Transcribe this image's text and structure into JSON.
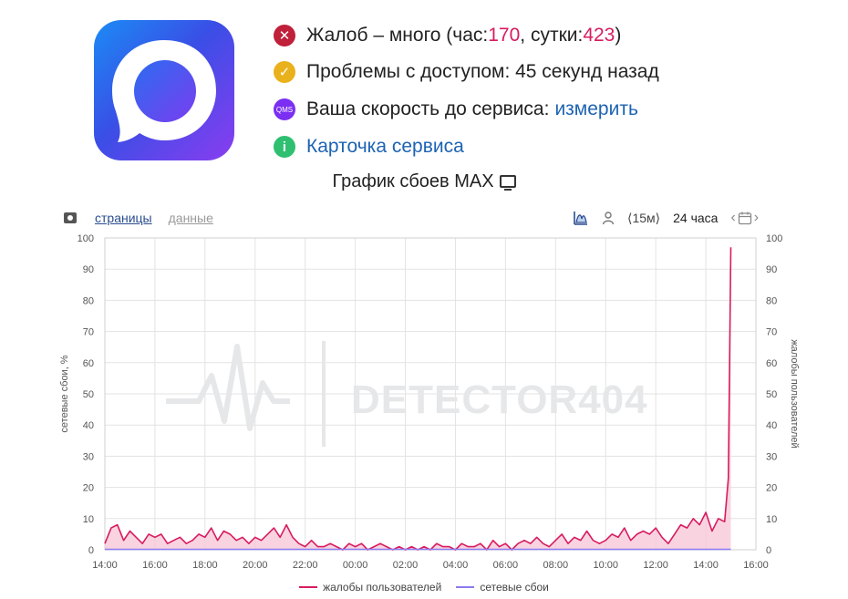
{
  "status": {
    "complaints": {
      "prefix": "Жалоб – много (час: ",
      "hour_value": "170",
      "mid": ", сутки: ",
      "day_value": "423",
      "suffix": ")"
    },
    "access": {
      "text": "Проблемы с доступом: 45 секунд назад"
    },
    "speed": {
      "icon_text": "QMS",
      "label": "Ваша скорость до сервиса: ",
      "link": "измерить"
    },
    "card": {
      "icon_text": "i",
      "link": "Карточка сервиса"
    }
  },
  "graph_title": "График сбоев MAX",
  "toolbar": {
    "tab_pages": "страницы",
    "tab_data": "данные",
    "interval": "⟨15м⟩",
    "period": "24 часа"
  },
  "watermark": "DETECTOR404",
  "colors": {
    "complaints": "#d81b60",
    "complaints_fill": "#f7c6d6",
    "network": "#8a7cf0",
    "grid": "#e3e3e3",
    "error": "#c0203a",
    "warning": "#e9b21c",
    "qms": "#7b2ff2",
    "info": "#2fbf71",
    "link": "#1d63b3"
  },
  "icons": {
    "error": "close-circle-icon",
    "warning": "check-circle-icon",
    "qms": "qms-badge-icon",
    "info": "info-circle-icon",
    "screenshot": "camera-icon",
    "chart_type": "area-chart-icon",
    "user": "user-icon",
    "calendar": "calendar-icon",
    "display": "monitor-icon"
  },
  "chart_data": {
    "type": "area",
    "title": "График сбоев MAX",
    "ylabel_left": "сетевые сбои, %",
    "ylabel_right": "жалобы пользователей",
    "ylim": [
      0,
      100
    ],
    "y_ticks": [
      0,
      10,
      20,
      30,
      40,
      50,
      60,
      70,
      80,
      90,
      100
    ],
    "x_ticks": [
      "14:00",
      "16:00",
      "18:00",
      "20:00",
      "22:00",
      "00:00",
      "02:00",
      "04:00",
      "06:00",
      "08:00",
      "10:00",
      "12:00",
      "14:00",
      "16:00"
    ],
    "grid": true,
    "legend_position": "bottom",
    "x_range_hours": [
      0,
      26
    ],
    "series": [
      {
        "name": "жалобы пользователей",
        "x_hours": [
          0,
          0.25,
          0.5,
          0.75,
          1,
          1.25,
          1.5,
          1.75,
          2,
          2.25,
          2.5,
          2.75,
          3,
          3.25,
          3.5,
          3.75,
          4,
          4.25,
          4.5,
          4.75,
          5,
          5.25,
          5.5,
          5.75,
          6,
          6.25,
          6.5,
          6.75,
          7,
          7.25,
          7.5,
          7.75,
          8,
          8.25,
          8.5,
          8.75,
          9,
          9.25,
          9.5,
          9.75,
          10,
          10.25,
          10.5,
          10.75,
          11,
          11.25,
          11.5,
          11.75,
          12,
          12.25,
          12.5,
          12.75,
          13,
          13.25,
          13.5,
          13.75,
          14,
          14.25,
          14.5,
          14.75,
          15,
          15.25,
          15.5,
          15.75,
          16,
          16.25,
          16.5,
          16.75,
          17,
          17.25,
          17.5,
          17.75,
          18,
          18.25,
          18.5,
          18.75,
          19,
          19.25,
          19.5,
          19.75,
          20,
          20.25,
          20.5,
          20.75,
          21,
          21.25,
          21.5,
          21.75,
          22,
          22.25,
          22.5,
          22.75,
          23,
          23.25,
          23.5,
          23.75,
          24,
          24.25,
          24.5,
          24.75,
          24.9,
          25.0
        ],
        "values": [
          2,
          7,
          8,
          3,
          6,
          4,
          2,
          5,
          4,
          5,
          2,
          3,
          4,
          2,
          3,
          5,
          4,
          7,
          3,
          6,
          5,
          3,
          4,
          2,
          4,
          3,
          5,
          7,
          4,
          8,
          4,
          2,
          1,
          3,
          1,
          1,
          2,
          1,
          0,
          2,
          1,
          2,
          0,
          1,
          2,
          1,
          0,
          1,
          0,
          1,
          0,
          1,
          0,
          2,
          1,
          1,
          0,
          2,
          1,
          1,
          2,
          0,
          3,
          1,
          2,
          0,
          2,
          3,
          2,
          4,
          2,
          1,
          3,
          5,
          2,
          4,
          3,
          6,
          3,
          2,
          3,
          5,
          4,
          7,
          3,
          5,
          6,
          5,
          7,
          4,
          2,
          5,
          8,
          7,
          10,
          8,
          12,
          6,
          10,
          9,
          23,
          97
        ]
      },
      {
        "name": "сетевые сбои",
        "x_hours": [
          0,
          25.0
        ],
        "values": [
          0,
          0
        ]
      }
    ]
  }
}
